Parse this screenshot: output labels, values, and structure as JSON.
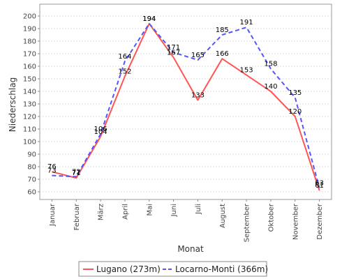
{
  "chart_data": {
    "type": "line",
    "xlabel": "Monat",
    "ylabel": "Niederschlag",
    "categories": [
      "Januar",
      "Februar",
      "März",
      "April",
      "Mai",
      "Juni",
      "Juli",
      "August",
      "September",
      "Oktober",
      "November",
      "Dezember"
    ],
    "ylim": [
      55,
      205
    ],
    "yticks": [
      60,
      70,
      80,
      90,
      100,
      110,
      120,
      130,
      140,
      150,
      160,
      170,
      180,
      190,
      200
    ],
    "grid": true,
    "legend_position": "bottom",
    "series": [
      {
        "name": "Lugano (273m)",
        "color": "#ff5555",
        "dash": "solid",
        "values": [
          76,
          71,
          104,
          152,
          194,
          167,
          133,
          166,
          153,
          140,
          120,
          61
        ]
      },
      {
        "name": "Locarno-Monti (366m)",
        "color": "#5555ff",
        "dash": "dashed",
        "values": [
          73,
          72,
          106,
          164,
          194,
          171,
          165,
          185,
          191,
          158,
          135,
          63
        ]
      }
    ]
  }
}
